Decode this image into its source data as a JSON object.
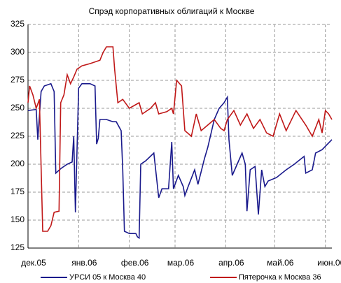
{
  "chart_data": {
    "type": "line",
    "title": "Спрэд корпоративных облигаций к Москве",
    "series": [
      {
        "name": "УРСИ 05 к Москва 40",
        "color": "#1a1a8c",
        "x": [
          0,
          5,
          6,
          8,
          10,
          14,
          16,
          17,
          20,
          24,
          27,
          28,
          29,
          31,
          33,
          38,
          41,
          42,
          43,
          44,
          48,
          52,
          54,
          57,
          58,
          59,
          62,
          66,
          67,
          68,
          69,
          72,
          77,
          80,
          82,
          86,
          88,
          89,
          92,
          95,
          96,
          98,
          102,
          104,
          108,
          110,
          114,
          117,
          120,
          122,
          123,
          125,
          128,
          131,
          133,
          134,
          136,
          139,
          141,
          143,
          145,
          147,
          152,
          158,
          163,
          169,
          170,
          174,
          176,
          180,
          186
        ],
        "values": [
          248,
          249,
          222,
          265,
          270,
          272,
          265,
          192,
          196,
          200,
          202,
          225,
          157,
          268,
          272,
          272,
          270,
          218,
          223,
          240,
          240,
          238,
          238,
          230,
          195,
          140,
          138,
          138,
          135,
          134,
          200,
          203,
          210,
          170,
          178,
          178,
          220,
          178,
          190,
          180,
          172,
          180,
          195,
          182,
          205,
          215,
          240,
          250,
          255,
          260,
          222,
          190,
          200,
          210,
          200,
          158,
          195,
          198,
          155,
          195,
          180,
          185,
          188,
          195,
          200,
          207,
          192,
          195,
          210,
          213,
          222
        ]
      },
      {
        "name": "Пятерочка к Москва 36",
        "color": "#c01818",
        "x": [
          0,
          1,
          3,
          5,
          7,
          9,
          12,
          14,
          16,
          19,
          20,
          22,
          24,
          26,
          28,
          30,
          33,
          38,
          44,
          46,
          48,
          52,
          53,
          55,
          58,
          62,
          68,
          70,
          75,
          78,
          80,
          85,
          88,
          89,
          91,
          94,
          96,
          100,
          103,
          106,
          110,
          114,
          118,
          120,
          122,
          126,
          130,
          134,
          138,
          142,
          146,
          150,
          154,
          158,
          164,
          170,
          174,
          178,
          180,
          182,
          184,
          186
        ],
        "values": [
          255,
          270,
          262,
          250,
          258,
          140,
          140,
          145,
          157,
          158,
          255,
          262,
          280,
          272,
          278,
          285,
          288,
          290,
          293,
          300,
          305,
          305,
          285,
          255,
          258,
          250,
          255,
          245,
          250,
          255,
          245,
          247,
          250,
          245,
          275,
          270,
          230,
          225,
          245,
          230,
          235,
          240,
          232,
          230,
          240,
          248,
          235,
          245,
          232,
          240,
          228,
          225,
          245,
          230,
          248,
          235,
          225,
          240,
          228,
          248,
          245,
          240
        ]
      }
    ],
    "xlim": [
      0,
      186
    ],
    "xticks": [
      {
        "value": 0,
        "label": "дек.05"
      },
      {
        "value": 31,
        "label": "янв.06"
      },
      {
        "value": 62,
        "label": "фев.06"
      },
      {
        "value": 90,
        "label": "мар.06"
      },
      {
        "value": 121,
        "label": "апр.06"
      },
      {
        "value": 151,
        "label": "май.06"
      },
      {
        "value": 182,
        "label": "июн.06"
      }
    ],
    "ylim": [
      125,
      325
    ],
    "yticks": [
      125,
      150,
      175,
      200,
      225,
      250,
      275,
      300,
      325
    ],
    "grid": true,
    "legend": "bottom"
  }
}
